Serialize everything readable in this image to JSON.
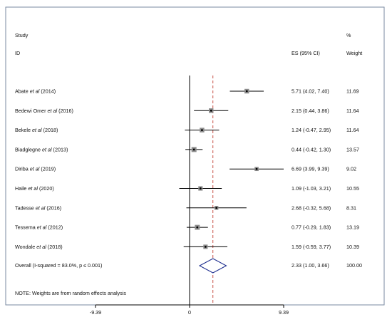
{
  "chart_data": {
    "type": "forest",
    "headers": {
      "study_line1": "Study",
      "study_line2": "ID",
      "es": "ES (95% CI)",
      "weight_line1": "%",
      "weight_line2": "Weight"
    },
    "studies": [
      {
        "author": "Abate",
        "etal": "et al",
        "year": "(2014)",
        "es": 5.71,
        "lo": 4.02,
        "hi": 7.4,
        "es_text": "5.71 (4.02, 7.40)",
        "weight": 11.69,
        "weight_text": "11.69"
      },
      {
        "author": "Bedewi Omer",
        "etal": "et al",
        "year": "(2016)",
        "es": 2.15,
        "lo": 0.44,
        "hi": 3.86,
        "es_text": "2.15 (0.44, 3.86)",
        "weight": 11.64,
        "weight_text": "11.64"
      },
      {
        "author": "Bekele",
        "etal": "et al",
        "year": "(2018)",
        "es": 1.24,
        "lo": -0.47,
        "hi": 2.95,
        "es_text": "1.24 (-0.47, 2.95)",
        "weight": 11.64,
        "weight_text": "11.64"
      },
      {
        "author": "Biadglegne",
        "etal": "et al",
        "year": "(2013)",
        "es": 0.44,
        "lo": -0.42,
        "hi": 1.3,
        "es_text": "0.44 (-0.42, 1.30)",
        "weight": 13.57,
        "weight_text": "13.57"
      },
      {
        "author": "Diriba",
        "etal": "et al",
        "year": "(2019)",
        "es": 6.69,
        "lo": 3.99,
        "hi": 9.39,
        "es_text": "6.69 (3.99, 9.39)",
        "weight": 9.02,
        "weight_text": "9.02"
      },
      {
        "author": "Haile",
        "etal": "et al",
        "year": "(2020)",
        "es": 1.09,
        "lo": -1.03,
        "hi": 3.21,
        "es_text": "1.09 (-1.03, 3.21)",
        "weight": 10.55,
        "weight_text": "10.55"
      },
      {
        "author": "Tadesse",
        "etal": "et al",
        "year": "(2016)",
        "es": 2.68,
        "lo": -0.32,
        "hi": 5.68,
        "es_text": "2.68 (-0.32, 5.68)",
        "weight": 8.31,
        "weight_text": "8.31"
      },
      {
        "author": "Tessema",
        "etal": "et al",
        "year": "(2012)",
        "es": 0.77,
        "lo": -0.29,
        "hi": 1.83,
        "es_text": "0.77 (-0.29, 1.83)",
        "weight": 13.19,
        "weight_text": "13.19"
      },
      {
        "author": "Wondale",
        "etal": "et al",
        "year": "(2018)",
        "es": 1.59,
        "lo": -0.59,
        "hi": 3.77,
        "es_text": "1.59 (-0.59, 3.77)",
        "weight": 10.39,
        "weight_text": "10.39"
      }
    ],
    "overall": {
      "label": "Overall  (I-squared = 83.0%, p ≤ 0.001)",
      "es": 2.33,
      "lo": 1.0,
      "hi": 3.66,
      "es_text": "2.33 (1.00, 3.66)",
      "weight_text": "100.00"
    },
    "note": "NOTE: Weights are from random effects analysis",
    "x_ticks": [
      -9.39,
      0,
      9.39
    ],
    "x_tick_labels": [
      "-9.39",
      "0",
      "9.39"
    ],
    "xlim": [
      -9.39,
      9.39
    ],
    "null_line": 0,
    "colors": {
      "ci_line": "#000000",
      "box": "#8c8c8c",
      "overall_diamond": "#1f2f8f",
      "overall_line": "#c0392b",
      "frame": "#7a8aa0"
    }
  }
}
